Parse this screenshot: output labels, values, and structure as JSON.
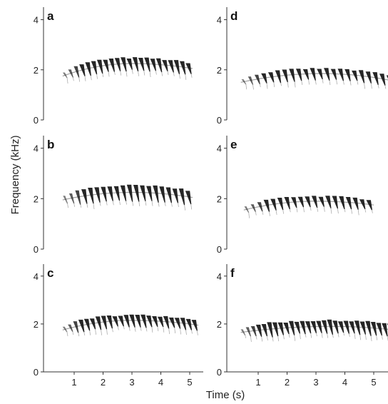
{
  "figure": {
    "ylabel": "Frequency (kHz)",
    "xlabel": "Time (s)"
  },
  "chart_data": [
    {
      "panel": "a",
      "type": "spectrogram",
      "xlabel": "",
      "ylabel": "Frequency (kHz)",
      "x_ticks": [],
      "y_ticks": [
        0,
        2,
        4
      ],
      "ylim": [
        0,
        4.5
      ],
      "start_time": 0.6,
      "end_time": 5.1,
      "start_freq": 1.75,
      "peak_freq": 2.25,
      "peak_time": 3.0,
      "end_freq": 2.05,
      "note_count": 22,
      "note_height": 0.5
    },
    {
      "panel": "b",
      "type": "spectrogram",
      "xlabel": "",
      "ylabel": "Frequency (kHz)",
      "x_ticks": [],
      "y_ticks": [
        0,
        2,
        4
      ],
      "ylim": [
        0,
        4.5
      ],
      "start_time": 0.6,
      "end_time": 5.1,
      "start_freq": 1.95,
      "peak_freq": 2.25,
      "peak_time": 3.0,
      "end_freq": 2.05,
      "note_count": 20,
      "note_height": 0.6
    },
    {
      "panel": "c",
      "type": "spectrogram",
      "xlabel": "",
      "ylabel": "Frequency (kHz)",
      "x_ticks": [
        1,
        2,
        3,
        4,
        5
      ],
      "y_ticks": [
        0,
        2,
        4
      ],
      "ylim": [
        0,
        4.5
      ],
      "start_time": 0.6,
      "end_time": 5.3,
      "start_freq": 1.75,
      "peak_freq": 2.15,
      "peak_time": 3.0,
      "end_freq": 1.95,
      "note_count": 24,
      "note_height": 0.5
    },
    {
      "panel": "d",
      "type": "spectrogram",
      "xlabel": "",
      "ylabel": "",
      "x_ticks": [],
      "y_ticks": [
        0,
        2,
        4
      ],
      "ylim": [
        0,
        4.5
      ],
      "start_time": 0.4,
      "end_time": 5.7,
      "start_freq": 1.5,
      "peak_freq": 1.85,
      "peak_time": 3.2,
      "end_freq": 1.55,
      "note_count": 22,
      "note_height": 0.45
    },
    {
      "panel": "e",
      "type": "spectrogram",
      "xlabel": "",
      "ylabel": "",
      "x_ticks": [],
      "y_ticks": [
        0,
        2,
        4
      ],
      "ylim": [
        0,
        4.5
      ],
      "start_time": 0.5,
      "end_time": 5.0,
      "start_freq": 1.55,
      "peak_freq": 1.9,
      "peak_time": 3.0,
      "end_freq": 1.75,
      "note_count": 19,
      "note_height": 0.45
    },
    {
      "panel": "f",
      "type": "spectrogram",
      "xlabel": "",
      "ylabel": "",
      "x_ticks": [
        1,
        2,
        3,
        4,
        5
      ],
      "y_ticks": [
        0,
        2,
        4
      ],
      "ylim": [
        0,
        4.5
      ],
      "start_time": 0.4,
      "end_time": 5.7,
      "start_freq": 1.65,
      "peak_freq": 1.9,
      "peak_time": 3.5,
      "end_freq": 1.75,
      "note_count": 28,
      "note_height": 0.55
    }
  ]
}
